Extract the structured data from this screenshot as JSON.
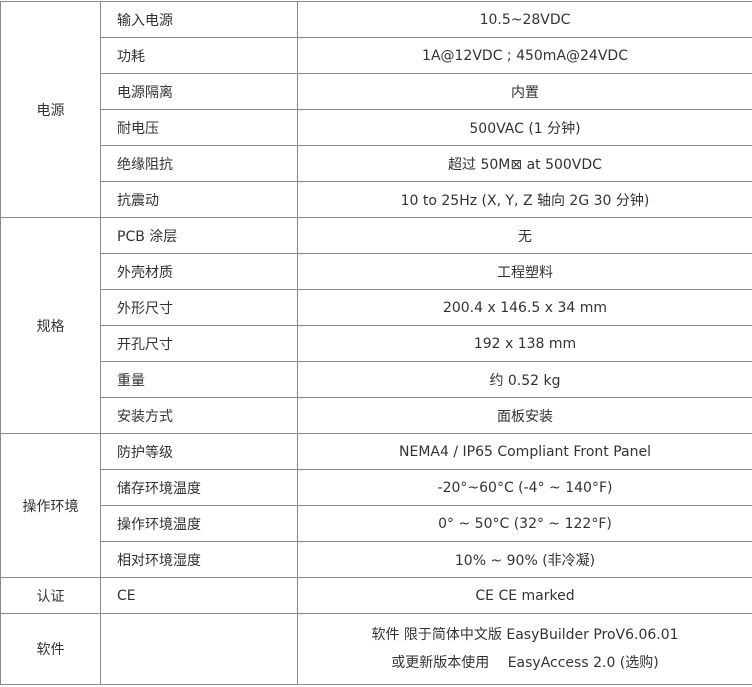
{
  "groups": [
    {
      "name": "电源",
      "rows": [
        {
          "label": "输入电源",
          "value": "10.5~28VDC"
        },
        {
          "label": "功耗",
          "value": "1A@12VDC ; 450mA@24VDC"
        },
        {
          "label": "电源隔离",
          "value": "内置"
        },
        {
          "label": "耐电压",
          "value": "500VAC (1 分钟)"
        },
        {
          "label": "绝缘阻抗",
          "value": "超过 50M⊠ at 500VDC"
        },
        {
          "label": "抗震动",
          "value": "10 to 25Hz (X, Y, Z 轴向 2G 30 分钟)"
        }
      ]
    },
    {
      "name": "规格",
      "rows": [
        {
          "label": "PCB 涂层",
          "value": "无"
        },
        {
          "label": "外壳材质",
          "value": "工程塑料"
        },
        {
          "label": "外形尺寸",
          "value": "200.4 x 146.5 x 34 mm"
        },
        {
          "label": "开孔尺寸",
          "value": "192 x 138 mm"
        },
        {
          "label": "重量",
          "value": "约 0.52 kg"
        },
        {
          "label": "安装方式",
          "value": "面板安装"
        }
      ]
    },
    {
      "name": "操作环境",
      "rows": [
        {
          "label": "防护等级",
          "value": "NEMA4 / IP65 Compliant Front Panel"
        },
        {
          "label": "储存环境温度",
          "value": "-20°~60°C (-4° ~ 140°F)"
        },
        {
          "label": "操作环境温度",
          "value": "0° ~ 50°C (32° ~ 122°F)"
        },
        {
          "label": "相对环境湿度",
          "value": "10% ~ 90% (非冷凝)"
        }
      ]
    },
    {
      "name": "认证",
      "rows": [
        {
          "label": "CE",
          "value": "CE CE marked"
        }
      ]
    },
    {
      "name": "软件",
      "rows": [
        {
          "label": "",
          "value_lines": [
            "软件 限于简体中文版 EasyBuilder ProV6.06.01",
            "或更新版本使用　 EasyAccess 2.0 (选购)"
          ]
        }
      ]
    }
  ]
}
